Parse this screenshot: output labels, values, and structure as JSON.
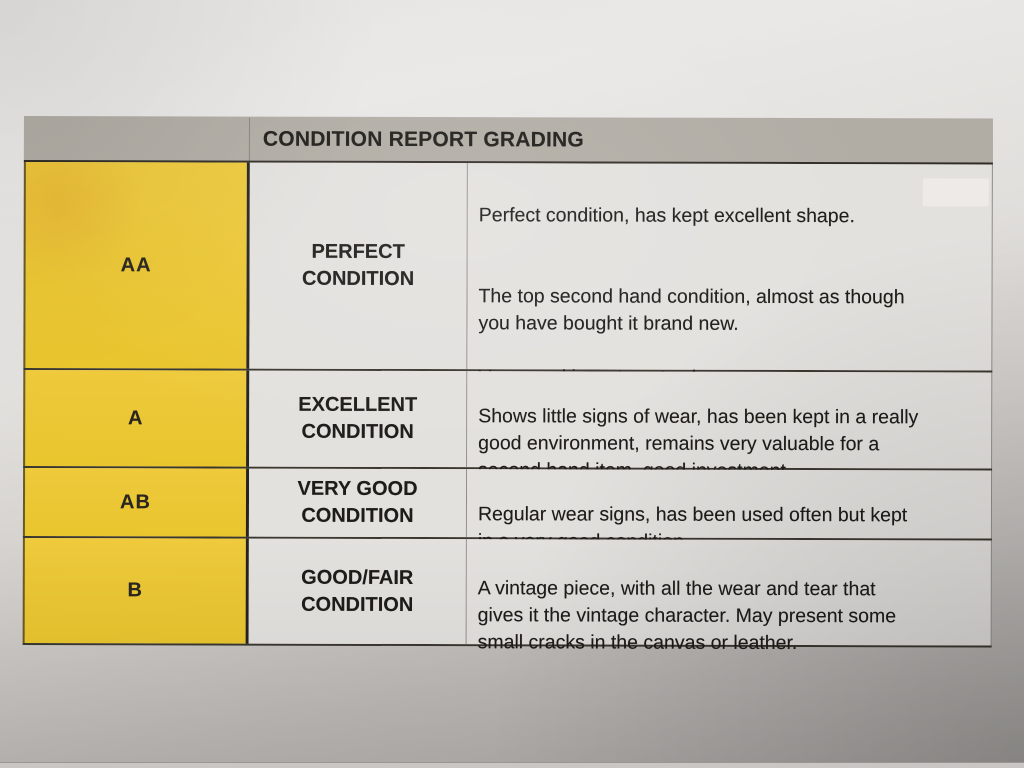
{
  "photo": {
    "paper_color_top": "#eae8e6",
    "paper_color_bottom": "#aaa7a4"
  },
  "table": {
    "title": "CONDITION REPORT GRADING",
    "colors": {
      "header_gray": "#b1aca4",
      "grade_yellow": "#ebc734",
      "cell_gray": "#e3e1de",
      "border_dark": "#302d27"
    },
    "rows": [
      {
        "grade": "AA",
        "condition": "PERFECT\nCONDITION",
        "description": "Perfect condition, has kept excellent shape.\n\n\nThe top second hand condition, almost as though\nyou have bought it brand new.\n\nVery good investment value"
      },
      {
        "grade": "A",
        "condition": "EXCELLENT\nCONDITION",
        "description": "Shows little signs of wear, has been kept in a really\ngood environment, remains very valuable for a\nsecond hand item, good investment."
      },
      {
        "grade": "AB",
        "condition": "VERY GOOD\nCONDITION",
        "description": "Regular wear signs, has been used often but kept\nin a very good condition."
      },
      {
        "grade": "B",
        "condition": "GOOD/FAIR\nCONDITION",
        "description": "A vintage piece, with all the wear and tear that\ngives it the vintage character. May present some\nsmall cracks in the canvas or leather."
      }
    ]
  }
}
